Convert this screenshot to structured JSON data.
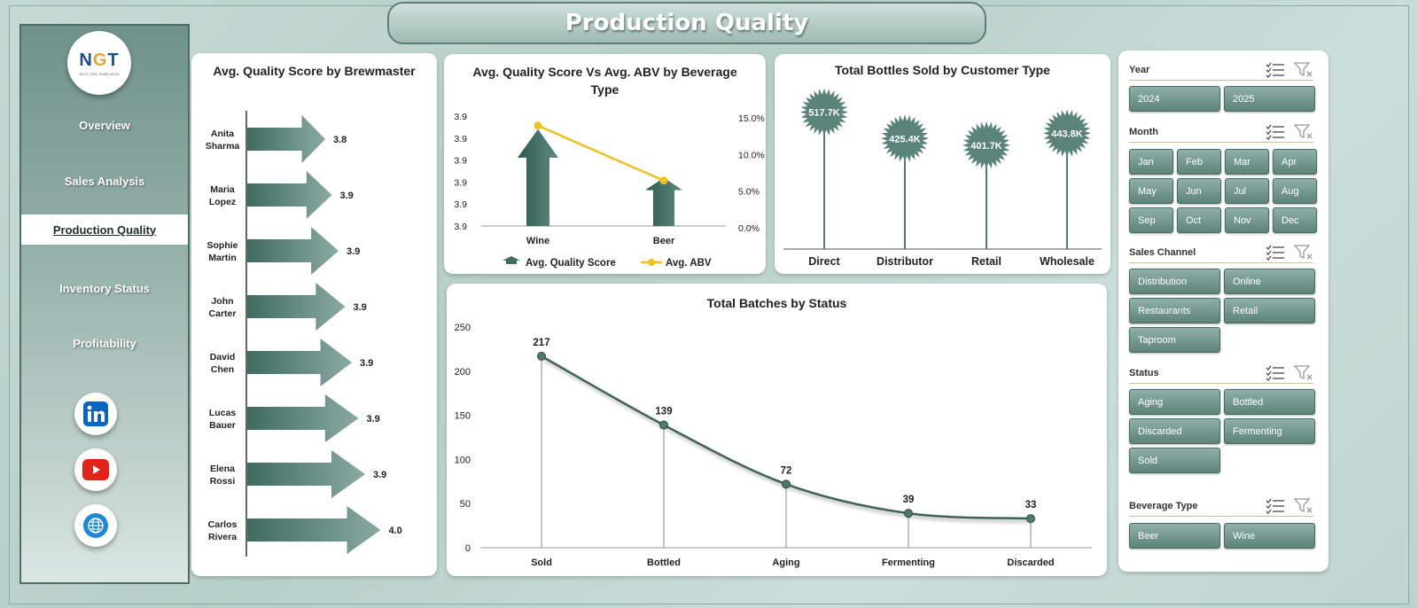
{
  "title": "Production Quality",
  "logo": {
    "text_a": "N",
    "text_b": "G",
    "text_c": "T",
    "tagline": "NEXT GEN TEMPLATES"
  },
  "nav": [
    {
      "label": "Overview",
      "active": false
    },
    {
      "label": "Sales Analysis",
      "active": false
    },
    {
      "label": "Production Quality",
      "active": true
    },
    {
      "label": "Inventory Status",
      "active": false
    },
    {
      "label": "Profitability",
      "active": false
    }
  ],
  "social": [
    "linkedin-icon",
    "youtube-icon",
    "web-globe-icon"
  ],
  "colors": {
    "accent": "#4f7a70",
    "line_yellow": "#f2c01e",
    "banner": "#a7c0b9"
  },
  "chart_data": [
    {
      "type": "bar",
      "title": "Avg. Quality Score by Brewmaster",
      "categories": [
        "Anita Sharma",
        "Maria Lopez",
        "Sophie Martin",
        "John Carter",
        "David Chen",
        "Lucas Bauer",
        "Elena Rossi",
        "Carlos Rivera"
      ],
      "values": [
        3.8,
        3.9,
        3.9,
        3.9,
        3.9,
        3.9,
        3.9,
        4.0
      ],
      "data_labels": [
        "3.8",
        "3.9",
        "3.9",
        "3.9",
        "3.9",
        "3.9",
        "3.9",
        "4.0"
      ],
      "orientation": "horizontal"
    },
    {
      "type": "bar",
      "title": "Avg. Quality Score Vs Avg. ABV by Beverage Type",
      "categories": [
        "Wine",
        "Beer"
      ],
      "series": [
        {
          "name": "Avg. Quality Score",
          "values": [
            3.93,
            3.875
          ],
          "kind": "bar",
          "axis": "left"
        },
        {
          "name": "Avg. ABV",
          "values": [
            0.137,
            0.062
          ],
          "kind": "line",
          "axis": "right"
        }
      ],
      "left_ticks": [
        "3.9",
        "3.9",
        "3.9",
        "3.9",
        "3.9",
        "3.9"
      ],
      "right_ticks": [
        "15.0%",
        "10.0%",
        "5.0%",
        "0.0%"
      ],
      "ylim_right": [
        0,
        0.15
      ],
      "legend": "bottom"
    },
    {
      "type": "bar",
      "title": "Total Bottles Sold by Customer Type",
      "categories": [
        "Direct",
        "Distributor",
        "Retail",
        "Wholesale"
      ],
      "values": [
        517700,
        425400,
        401700,
        443800
      ],
      "data_labels": [
        "517.7K",
        "425.4K",
        "401.7K",
        "443.8K"
      ]
    },
    {
      "type": "line",
      "title": "Total Batches by Status",
      "categories": [
        "Sold",
        "Bottled",
        "Aging",
        "Fermenting",
        "Discarded"
      ],
      "values": [
        217,
        139,
        72,
        39,
        33
      ],
      "data_labels": [
        "217",
        "139",
        "72",
        "39",
        "33"
      ],
      "ylim": [
        0,
        250
      ],
      "yticks": [
        "250",
        "200",
        "150",
        "100",
        "50",
        "0"
      ]
    }
  ],
  "slicers": {
    "year": {
      "label": "Year",
      "options": [
        "2024",
        "2025"
      ]
    },
    "month": {
      "label": "Month",
      "options": [
        "Jan",
        "Feb",
        "Mar",
        "Apr",
        "May",
        "Jun",
        "Jul",
        "Aug",
        "Sep",
        "Oct",
        "Nov",
        "Dec"
      ]
    },
    "channel": {
      "label": "Sales Channel",
      "options": [
        "Distribution",
        "Online",
        "Restaurants",
        "Retail",
        "Taproom"
      ]
    },
    "status": {
      "label": "Status",
      "options": [
        "Aging",
        "Bottled",
        "Discarded",
        "Fermenting",
        "Sold"
      ]
    },
    "beverage": {
      "label": "Beverage Type",
      "options": [
        "Beer",
        "Wine"
      ]
    }
  }
}
